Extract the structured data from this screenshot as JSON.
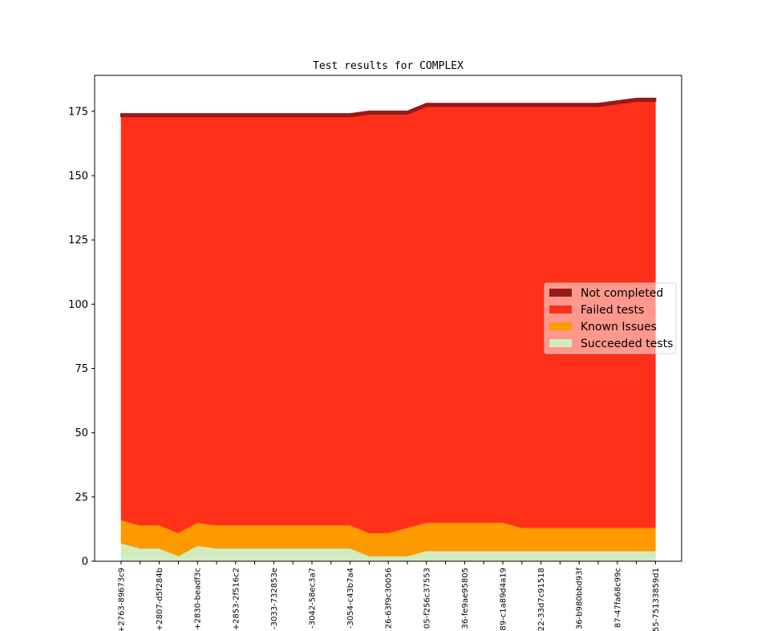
{
  "chart_data": {
    "type": "area",
    "title": "Test results for COMPLEX",
    "xlabel": "",
    "ylabel": "",
    "ylim": [
      0,
      189
    ],
    "yticks": [
      0,
      25,
      50,
      75,
      100,
      125,
      150,
      175
    ],
    "grid": false,
    "legend_position": "right",
    "x": [
      "+2763-89673c9",
      "",
      "+2807-d5f284b",
      "",
      "+2830-beadf3c",
      "",
      "+2853-2f516c2",
      "",
      "-3033-732853e",
      "",
      "-3042-58ec3a7",
      "",
      "-3054-c43b7a4",
      "",
      "26-63f9c30056",
      "",
      "05-f256c37553",
      "",
      "36-fe9ae95805",
      "",
      "89-c1a89d4a19",
      "",
      "22-33d7c91518",
      "",
      "36-b980bbd93f",
      "",
      "87-47fa68c99c",
      "",
      "55-75133859d1"
    ],
    "series": [
      {
        "name": "Succeeded tests",
        "color": "#d0ecc0",
        "values": [
          7,
          5,
          5,
          2,
          6,
          5,
          5,
          5,
          5,
          5,
          5,
          5,
          5,
          2,
          2,
          2,
          4,
          4,
          4,
          4,
          4,
          4,
          4,
          4,
          4,
          4,
          4,
          4,
          4
        ]
      },
      {
        "name": "Known Issues",
        "color": "#ff9900",
        "values": [
          9,
          9,
          9,
          9,
          9,
          9,
          9,
          9,
          9,
          9,
          9,
          9,
          9,
          9,
          9,
          11,
          11,
          11,
          11,
          11,
          11,
          9,
          9,
          9,
          9,
          9,
          9,
          9,
          9
        ]
      },
      {
        "name": "Failed tests",
        "color": "#ff3019",
        "values": [
          157,
          159,
          159,
          162,
          158,
          159,
          159,
          159,
          159,
          159,
          159,
          159,
          159,
          163,
          163,
          161,
          162,
          162,
          162,
          162,
          162,
          164,
          164,
          164,
          164,
          164,
          165,
          166,
          166
        ]
      },
      {
        "name": "Not completed",
        "color": "#991818",
        "values": [
          1,
          1,
          1,
          1,
          1,
          1,
          1,
          1,
          1,
          1,
          1,
          1,
          1,
          1,
          1,
          1,
          1,
          1,
          1,
          1,
          1,
          1,
          1,
          1,
          1,
          1,
          1,
          1,
          1
        ]
      }
    ],
    "legend_order": [
      "Not completed",
      "Failed tests",
      "Known Issues",
      "Succeeded tests"
    ]
  }
}
